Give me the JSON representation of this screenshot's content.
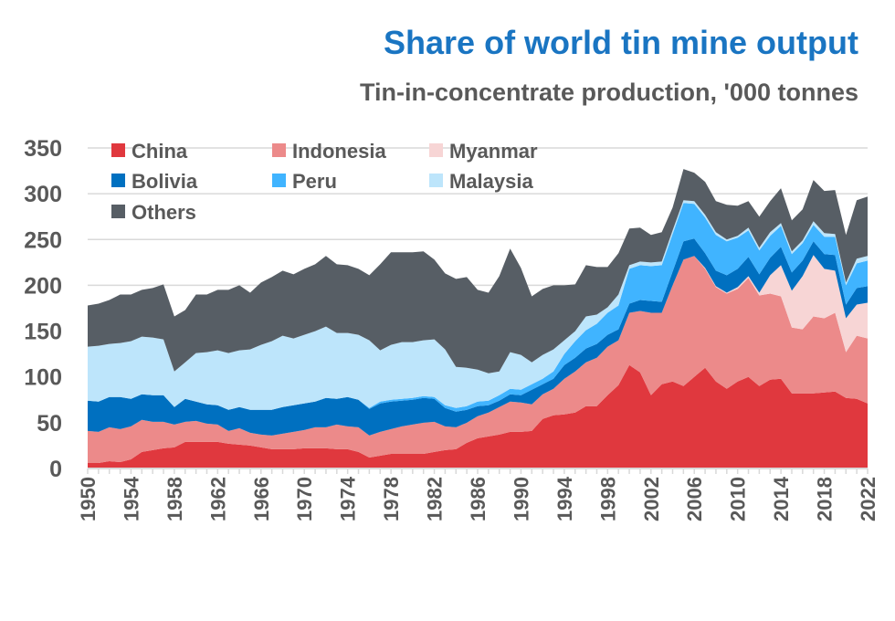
{
  "chart_data": {
    "type": "area",
    "stacked": true,
    "title": "Share of world tin mine output",
    "subtitle": "Tin-in-concentrate production, '000 tonnes",
    "xlabel": "",
    "ylabel": "",
    "ylim": [
      0,
      350
    ],
    "yticks": [
      0,
      50,
      100,
      150,
      200,
      250,
      300,
      350
    ],
    "xlim": [
      1950,
      2022
    ],
    "xticks": [
      1950,
      1954,
      1958,
      1962,
      1966,
      1970,
      1974,
      1978,
      1982,
      1986,
      1990,
      1994,
      1998,
      2002,
      2006,
      2010,
      2014,
      2018,
      2022
    ],
    "grid": true,
    "legend_placement": "top-left",
    "x": [
      1950,
      1951,
      1952,
      1953,
      1954,
      1955,
      1956,
      1957,
      1958,
      1959,
      1960,
      1961,
      1962,
      1963,
      1964,
      1965,
      1966,
      1967,
      1968,
      1969,
      1970,
      1971,
      1972,
      1973,
      1974,
      1975,
      1976,
      1977,
      1978,
      1979,
      1980,
      1981,
      1982,
      1983,
      1984,
      1985,
      1986,
      1987,
      1988,
      1989,
      1990,
      1991,
      1992,
      1993,
      1994,
      1995,
      1996,
      1997,
      1998,
      1999,
      2000,
      2001,
      2002,
      2003,
      2004,
      2005,
      2006,
      2007,
      2008,
      2009,
      2010,
      2011,
      2012,
      2013,
      2014,
      2015,
      2016,
      2017,
      2018,
      2019,
      2020,
      2021,
      2022
    ],
    "series": [
      {
        "name": "China",
        "color": "#E0383E",
        "values": [
          6,
          6,
          8,
          7,
          10,
          18,
          20,
          22,
          23,
          29,
          29,
          29,
          29,
          27,
          26,
          25,
          23,
          21,
          21,
          21,
          22,
          22,
          22,
          21,
          21,
          18,
          12,
          14,
          16,
          16,
          16,
          16,
          18,
          20,
          21,
          28,
          33,
          35,
          37,
          40,
          40,
          41,
          54,
          58,
          59,
          61,
          68,
          68,
          80,
          91,
          113,
          105,
          80,
          92,
          95,
          90,
          100,
          110,
          95,
          87,
          95,
          100,
          90,
          97,
          98,
          82,
          82,
          82,
          83,
          84,
          77,
          76,
          71
        ]
      },
      {
        "name": "Indonesia",
        "color": "#EC8A8A",
        "values": [
          35,
          34,
          37,
          36,
          36,
          35,
          31,
          29,
          25,
          22,
          23,
          20,
          19,
          14,
          18,
          14,
          14,
          15,
          17,
          19,
          20,
          23,
          23,
          27,
          25,
          27,
          24,
          26,
          27,
          30,
          32,
          34,
          33,
          26,
          24,
          22,
          24,
          26,
          30,
          33,
          32,
          29,
          27,
          29,
          39,
          45,
          48,
          53,
          53,
          49,
          57,
          67,
          90,
          78,
          105,
          138,
          132,
          108,
          103,
          104,
          101,
          108,
          99,
          94,
          90,
          72,
          70,
          84,
          81,
          86,
          50,
          69,
          71
        ]
      },
      {
        "name": "Myanmar",
        "color": "#F7D5D5",
        "values": [
          0,
          0,
          0,
          0,
          0,
          0,
          0,
          0,
          0,
          0,
          0,
          0,
          0,
          0,
          0,
          0,
          0,
          0,
          0,
          0,
          0,
          0,
          0,
          0,
          0,
          0,
          0,
          0,
          0,
          0,
          0,
          0,
          0,
          0,
          0,
          0,
          0,
          0,
          0,
          0,
          0,
          0,
          0,
          0,
          0,
          0,
          0,
          0,
          0,
          0,
          0,
          0,
          0,
          0,
          0,
          0,
          0,
          1,
          1,
          1,
          2,
          2,
          3,
          20,
          34,
          40,
          58,
          67,
          54,
          46,
          37,
          34,
          39
        ]
      },
      {
        "name": "Bolivia",
        "color": "#0070C0",
        "values": [
          33,
          33,
          33,
          35,
          30,
          28,
          29,
          29,
          19,
          25,
          21,
          21,
          21,
          23,
          23,
          25,
          27,
          28,
          29,
          29,
          29,
          28,
          32,
          28,
          32,
          30,
          29,
          31,
          30,
          28,
          27,
          27,
          25,
          20,
          17,
          14,
          11,
          8,
          7,
          8,
          8,
          16,
          11,
          11,
          15,
          15,
          15,
          15,
          13,
          12,
          10,
          12,
          13,
          12,
          15,
          20,
          19,
          16,
          17,
          19,
          20,
          21,
          20,
          19,
          20,
          20,
          17,
          15,
          16,
          17,
          15,
          18,
          18
        ]
      },
      {
        "name": "Peru",
        "color": "#40B4FF",
        "values": [
          0,
          0,
          0,
          0,
          0,
          0,
          0,
          0,
          0,
          0,
          0,
          0,
          0,
          0,
          0,
          0,
          0,
          0,
          0,
          0,
          0,
          0,
          0,
          0,
          0,
          0,
          1,
          2,
          2,
          2,
          2,
          2,
          2,
          3,
          4,
          4,
          5,
          5,
          6,
          6,
          6,
          6,
          6,
          8,
          12,
          18,
          20,
          22,
          24,
          26,
          38,
          38,
          38,
          40,
          41,
          42,
          38,
          39,
          39,
          37,
          34,
          29,
          26,
          24,
          23,
          20,
          19,
          18,
          19,
          20,
          21,
          27,
          28
        ]
      },
      {
        "name": "Malaysia",
        "color": "#BDE5FB",
        "values": [
          59,
          61,
          58,
          59,
          63,
          63,
          63,
          61,
          39,
          40,
          53,
          57,
          60,
          62,
          62,
          66,
          71,
          75,
          78,
          73,
          75,
          77,
          78,
          72,
          70,
          71,
          74,
          56,
          60,
          62,
          61,
          61,
          63,
          61,
          45,
          42,
          35,
          30,
          26,
          40,
          38,
          24,
          26,
          24,
          15,
          11,
          15,
          10,
          6,
          12,
          4,
          4,
          4,
          4,
          4,
          3,
          3,
          3,
          3,
          2,
          2,
          3,
          3,
          4,
          3,
          3,
          3,
          4,
          4,
          3,
          3,
          5,
          5
        ]
      },
      {
        "name": "Others",
        "color": "#575E65",
        "values": [
          45,
          46,
          48,
          53,
          51,
          51,
          54,
          60,
          60,
          57,
          64,
          63,
          66,
          69,
          71,
          62,
          68,
          70,
          71,
          70,
          72,
          73,
          77,
          75,
          74,
          72,
          71,
          94,
          101,
          98,
          98,
          97,
          87,
          83,
          96,
          99,
          87,
          88,
          104,
          113,
          95,
          72,
          72,
          70,
          60,
          51,
          56,
          52,
          44,
          45,
          40,
          37,
          30,
          32,
          25,
          34,
          31,
          36,
          34,
          38,
          33,
          29,
          34,
          34,
          38,
          34,
          34,
          45,
          46,
          48,
          52,
          64,
          65
        ]
      }
    ]
  }
}
